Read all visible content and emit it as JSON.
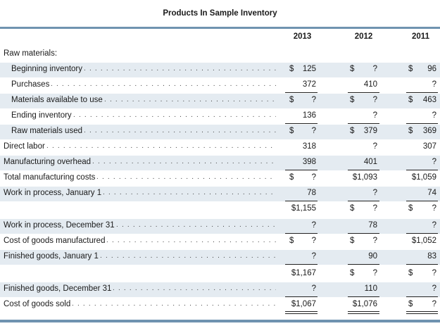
{
  "title": "Products In Sample Inventory",
  "columns": [
    "2013",
    "2012",
    "2011"
  ],
  "rows": [
    {
      "label": "Raw materials:",
      "indent": false,
      "cells": [
        {
          "s": "",
          "v": ""
        },
        {
          "s": "",
          "v": ""
        },
        {
          "s": "",
          "v": ""
        }
      ]
    },
    {
      "label": "Beginning inventory",
      "indent": true,
      "cells": [
        {
          "s": "$",
          "v": "125"
        },
        {
          "s": "$",
          "v": "?"
        },
        {
          "s": "$",
          "v": "96"
        }
      ]
    },
    {
      "label": "Purchases",
      "indent": true,
      "cells": [
        {
          "s": "",
          "v": "372"
        },
        {
          "s": "",
          "v": "410"
        },
        {
          "s": "",
          "v": "?"
        }
      ]
    },
    {
      "label": "Materials available to use",
      "indent": true,
      "cells": [
        {
          "s": "$",
          "v": "?"
        },
        {
          "s": "$",
          "v": "?"
        },
        {
          "s": "$",
          "v": "463"
        }
      ]
    },
    {
      "label": "Ending inventory",
      "indent": true,
      "cells": [
        {
          "s": "",
          "v": "136"
        },
        {
          "s": "",
          "v": "?"
        },
        {
          "s": "",
          "v": "?"
        }
      ]
    },
    {
      "label": "Raw materials used",
      "indent": true,
      "cells": [
        {
          "s": "$",
          "v": "?"
        },
        {
          "s": "$",
          "v": "379"
        },
        {
          "s": "$",
          "v": "369"
        }
      ]
    },
    {
      "label": "Direct labor",
      "indent": false,
      "cells": [
        {
          "s": "",
          "v": "318"
        },
        {
          "s": "",
          "v": "?"
        },
        {
          "s": "",
          "v": "307"
        }
      ]
    },
    {
      "label": "Manufacturing overhead",
      "indent": false,
      "cells": [
        {
          "s": "",
          "v": "398"
        },
        {
          "s": "",
          "v": "401"
        },
        {
          "s": "",
          "v": "?"
        }
      ]
    },
    {
      "label": "Total manufacturing costs",
      "indent": false,
      "cells": [
        {
          "s": "$",
          "v": "?"
        },
        {
          "s": "",
          "v": "$1,093"
        },
        {
          "s": "",
          "v": "$1,059"
        }
      ]
    },
    {
      "label": "Work in process, January 1",
      "indent": false,
      "cells": [
        {
          "s": "",
          "v": "78"
        },
        {
          "s": "",
          "v": "?"
        },
        {
          "s": "",
          "v": "74"
        }
      ]
    },
    {
      "label": "",
      "indent": false,
      "cells": [
        {
          "s": "",
          "v": "$1,155"
        },
        {
          "s": "$",
          "v": "?"
        },
        {
          "s": "$",
          "v": "?"
        }
      ]
    },
    {
      "label": "Work in process, December 31",
      "indent": false,
      "cells": [
        {
          "s": "",
          "v": "?"
        },
        {
          "s": "",
          "v": "78"
        },
        {
          "s": "",
          "v": "?"
        }
      ]
    },
    {
      "label": "Cost of goods manufactured",
      "indent": false,
      "cells": [
        {
          "s": "$",
          "v": "?"
        },
        {
          "s": "$",
          "v": "?"
        },
        {
          "s": "",
          "v": "$1,052"
        }
      ]
    },
    {
      "label": "Finished goods, January 1",
      "indent": false,
      "cells": [
        {
          "s": "",
          "v": "?"
        },
        {
          "s": "",
          "v": "90"
        },
        {
          "s": "",
          "v": "83"
        }
      ]
    },
    {
      "label": "",
      "indent": false,
      "cells": [
        {
          "s": "",
          "v": "$1,167"
        },
        {
          "s": "$",
          "v": "?"
        },
        {
          "s": "$",
          "v": "?"
        }
      ]
    },
    {
      "label": "Finished goods, December 31",
      "indent": false,
      "cells": [
        {
          "s": "",
          "v": "?"
        },
        {
          "s": "",
          "v": "110"
        },
        {
          "s": "",
          "v": "?"
        }
      ]
    },
    {
      "label": "Cost of goods sold",
      "indent": false,
      "cells": [
        {
          "s": "",
          "v": "$1,067"
        },
        {
          "s": "",
          "v": "$1,076"
        },
        {
          "s": "$",
          "v": "?"
        }
      ]
    }
  ]
}
